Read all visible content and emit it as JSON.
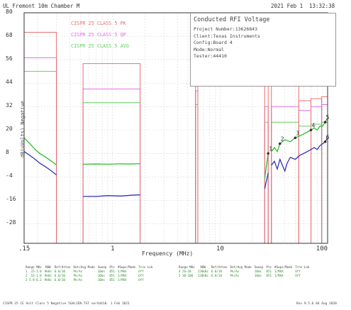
{
  "header": {
    "left": "UL Fremont 10m Chamber M",
    "date": "2021 Feb 1",
    "time": "13:32:38"
  },
  "info_box": {
    "title": "Conducted RFI Voltage",
    "lines": [
      "Project Number:13626843",
      "Client:Texas Instruments",
      "Config:Board 4",
      "Mode:Normal",
      "Tester:44410"
    ]
  },
  "colors": {
    "limit_pk": "#e87070",
    "limit_qp": "#e070e0",
    "limit_avg": "#60d060",
    "data_pk": "#30c030",
    "data_avg": "#3030c0",
    "grid": "#d8d8d8",
    "axis": "#333333"
  },
  "chart_data": {
    "type": "line",
    "title": "",
    "xlabel": "Frequency (MHz)",
    "ylabel": "dB(uVolts) Negative",
    "x_scale": "log",
    "xlim": [
      0.15,
      100
    ],
    "ylim": [
      -38,
      80
    ],
    "x_ticks": [
      ".15",
      "1",
      "10",
      "100"
    ],
    "y_ticks": [
      "80",
      "68",
      "56",
      "44",
      "32",
      "20",
      "8",
      "-4",
      "-16",
      "-28"
    ],
    "legend": [
      "CISPR 25 CLASS 5 PK",
      "CISPR 25 CLASS 5 QP",
      "CISPR 25 CLASS 5 AVG"
    ],
    "marker_labels": [
      "1",
      "2",
      "3",
      "4",
      "5",
      "6"
    ],
    "limits": {
      "pk": [
        {
          "f1": 0.15,
          "f2": 0.3,
          "dB": 70
        },
        {
          "f1": 0.53,
          "f2": 1.8,
          "dB": 54
        },
        {
          "f1": 5.9,
          "f2": 6.2,
          "dB": 53
        },
        {
          "f1": 26,
          "f2": 28,
          "dB": 44
        },
        {
          "f1": 30,
          "f2": 54,
          "dB": 44
        },
        {
          "f1": 54,
          "f2": 70,
          "dB": 35
        },
        {
          "f1": 70,
          "f2": 88,
          "dB": 36
        },
        {
          "f1": 88,
          "f2": 100,
          "dB": 37
        }
      ],
      "qp": [
        {
          "f1": 0.15,
          "f2": 0.3,
          "dB": 57
        },
        {
          "f1": 0.53,
          "f2": 1.8,
          "dB": 41
        },
        {
          "f1": 5.9,
          "f2": 6.2,
          "dB": 40
        },
        {
          "f1": 26,
          "f2": 28,
          "dB": 32
        },
        {
          "f1": 30,
          "f2": 54,
          "dB": 32
        },
        {
          "f1": 54,
          "f2": 70,
          "dB": 30
        },
        {
          "f1": 70,
          "f2": 88,
          "dB": 32
        },
        {
          "f1": 88,
          "f2": 100,
          "dB": 33
        }
      ],
      "avg": [
        {
          "f1": 0.15,
          "f2": 0.3,
          "dB": 50
        },
        {
          "f1": 0.53,
          "f2": 1.8,
          "dB": 34
        },
        {
          "f1": 5.9,
          "f2": 6.2,
          "dB": 33
        },
        {
          "f1": 26,
          "f2": 28,
          "dB": 24
        },
        {
          "f1": 30,
          "f2": 54,
          "dB": 24
        },
        {
          "f1": 54,
          "f2": 70,
          "dB": 22
        },
        {
          "f1": 70,
          "f2": 88,
          "dB": 23
        },
        {
          "f1": 88,
          "f2": 100,
          "dB": 24
        }
      ]
    },
    "series": [
      {
        "name": "Peak",
        "segments": [
          [
            [
              0.15,
              16
            ],
            [
              0.17,
              13
            ],
            [
              0.19,
              10
            ],
            [
              0.21,
              8
            ],
            [
              0.24,
              6
            ],
            [
              0.27,
              4
            ],
            [
              0.3,
              2
            ]
          ],
          [
            [
              0.53,
              2.5
            ],
            [
              0.7,
              2.6
            ],
            [
              0.9,
              2.5
            ],
            [
              1.2,
              2.7
            ],
            [
              1.5,
              2.6
            ],
            [
              1.8,
              2.8
            ]
          ],
          [
            [
              26,
              -5
            ],
            [
              27,
              2
            ],
            [
              28,
              8
            ]
          ],
          [
            [
              30,
              9
            ],
            [
              32,
              11
            ],
            [
              34,
              9
            ],
            [
              36,
              13
            ],
            [
              40,
              15
            ],
            [
              45,
              14
            ],
            [
              50,
              16
            ],
            [
              55,
              17
            ],
            [
              60,
              18
            ],
            [
              65,
              19
            ],
            [
              70,
              20
            ],
            [
              75,
              21
            ],
            [
              80,
              20
            ],
            [
              85,
              22
            ],
            [
              90,
              22
            ],
            [
              95,
              24
            ],
            [
              100,
              26
            ]
          ]
        ]
      },
      {
        "name": "Average",
        "segments": [
          [
            [
              0.15,
              9
            ],
            [
              0.17,
              7
            ],
            [
              0.19,
              5
            ],
            [
              0.21,
              3
            ],
            [
              0.24,
              1
            ],
            [
              0.27,
              -1
            ],
            [
              0.3,
              -3
            ]
          ],
          [
            [
              0.53,
              -14
            ],
            [
              0.7,
              -14
            ],
            [
              0.9,
              -13.6
            ],
            [
              1.2,
              -13.8
            ],
            [
              1.5,
              -13.4
            ],
            [
              1.8,
              -13.2
            ]
          ],
          [
            [
              26,
              -10
            ],
            [
              27,
              -6
            ],
            [
              28,
              -2
            ]
          ],
          [
            [
              30,
              2
            ],
            [
              32,
              4
            ],
            [
              34,
              0
            ],
            [
              36,
              5
            ],
            [
              40,
              -1
            ],
            [
              42,
              3
            ],
            [
              45,
              6
            ],
            [
              50,
              5
            ],
            [
              55,
              7
            ],
            [
              60,
              8
            ],
            [
              65,
              9
            ],
            [
              70,
              10
            ],
            [
              75,
              11
            ],
            [
              80,
              10
            ],
            [
              85,
              12
            ],
            [
              90,
              13
            ],
            [
              95,
              14
            ],
            [
              100,
              16
            ]
          ]
        ]
      }
    ],
    "markers": [
      {
        "x": 28,
        "y": 8
      },
      {
        "x": 36,
        "y": 13
      },
      {
        "x": 50,
        "y": 16
      },
      {
        "x": 70,
        "y": 20
      },
      {
        "x": 95,
        "y": 24
      },
      {
        "x": 95,
        "y": 14
      }
    ]
  },
  "table_left": {
    "header": [
      "Range MHz",
      "RBW",
      "Ref/Atten",
      "Det/Avg Mode",
      "Sweep",
      "Pts",
      "#Swps/Mode",
      "Trns Lnk"
    ],
    "rows": [
      [
        "1  .15-1.0",
        "9kHz",
        "6.0/10",
        "Pk/Av",
        "10ms",
        "851",
        "1/MAX",
        "Off"
      ],
      [
        "2  .53-1.8",
        "9kHz",
        "6.0/10",
        "Pk/Av",
        "10ms",
        "851",
        "1/MAX",
        "Off"
      ],
      [
        "3  5.9-6.2",
        "9kHz",
        "6.0/10",
        "Pk/Av",
        "10ms",
        "851",
        "1/MAX",
        "Off"
      ]
    ]
  },
  "table_right": {
    "header": [
      "Range MHz",
      "RBW",
      "Ref/Atten",
      "Det/Avg Mode",
      "Sweep",
      "Pts",
      "#Swps/Mode",
      "Trns Lnk"
    ],
    "rows": [
      [
        "4  26-28",
        "120kHz",
        "6.0/10",
        "Pk/Av",
        "10ms",
        "851",
        "1/MAX",
        "Off"
      ],
      [
        "5  30-108",
        "120kHz",
        "6.0/10",
        "Pk/Av",
        "10ms",
        "851",
        "1/MAX",
        "Off"
      ]
    ]
  },
  "footer": {
    "left": "CISPR 25 CE Volt Class 5 Negative 5GALIEN.TST  ver44410. 1 Feb 2021",
    "right": "Rev 9.5.6 04 Aug 2020"
  }
}
